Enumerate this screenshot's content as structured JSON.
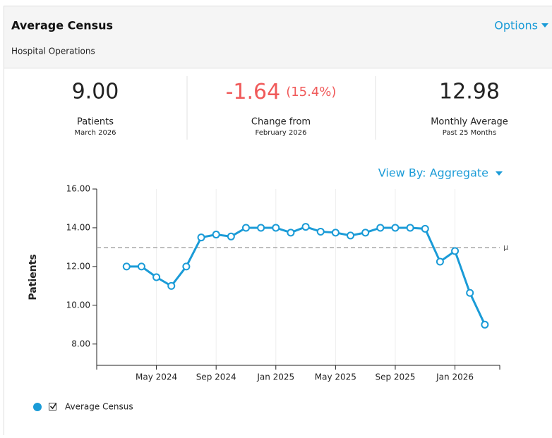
{
  "header": {
    "title": "Average Census",
    "subtitle": "Hospital Operations",
    "menu": "Options"
  },
  "stats": [
    {
      "value": "9.00",
      "label": "Patients",
      "sublabel": "March 2026"
    },
    {
      "value": "-1.64",
      "percent": "(15.4%)",
      "label": "Change from",
      "sublabel": "February 2026"
    },
    {
      "value": "12.98",
      "label": "Monthly Average",
      "sublabel": "Past 25 Months"
    }
  ],
  "view_by": "View By: Aggregate",
  "chart_data": {
    "type": "line",
    "ylabel": "Patients",
    "x": [
      "2024-03",
      "2024-04",
      "2024-05",
      "2024-06",
      "2024-07",
      "2024-08",
      "2024-09",
      "2024-10",
      "2024-11",
      "2024-12",
      "2025-01",
      "2025-02",
      "2025-03",
      "2025-04",
      "2025-05",
      "2025-06",
      "2025-07",
      "2025-08",
      "2025-09",
      "2025-10",
      "2025-11",
      "2025-12",
      "2026-01",
      "2026-02",
      "2026-03"
    ],
    "series": [
      {
        "name": "Average Census",
        "color": "#1a9bd7",
        "values": [
          12.0,
          12.0,
          11.45,
          11.0,
          12.0,
          13.5,
          13.65,
          13.55,
          14.0,
          14.0,
          14.0,
          13.75,
          14.05,
          13.8,
          13.75,
          13.6,
          13.75,
          14.0,
          14.0,
          14.0,
          13.95,
          12.25,
          12.8,
          10.64,
          9.0
        ]
      }
    ],
    "mean": 12.98,
    "mean_label": "µ",
    "xlim": [
      "2024-01",
      "2026-04"
    ],
    "xticks": [
      {
        "value": "2024-05",
        "label": "May 2024"
      },
      {
        "value": "2024-09",
        "label": "Sep 2024"
      },
      {
        "value": "2025-01",
        "label": "Jan 2025"
      },
      {
        "value": "2025-05",
        "label": "May 2025"
      },
      {
        "value": "2025-09",
        "label": "Sep 2025"
      },
      {
        "value": "2026-01",
        "label": "Jan 2026"
      }
    ],
    "ylim": [
      6.9,
      16
    ],
    "yticks": [
      {
        "value": 8,
        "label": "8.00"
      },
      {
        "value": 10,
        "label": "10.00"
      },
      {
        "value": 12,
        "label": "12.00"
      },
      {
        "value": 14,
        "label": "14.00"
      },
      {
        "value": 16,
        "label": "16.00"
      }
    ],
    "grid": "x"
  }
}
